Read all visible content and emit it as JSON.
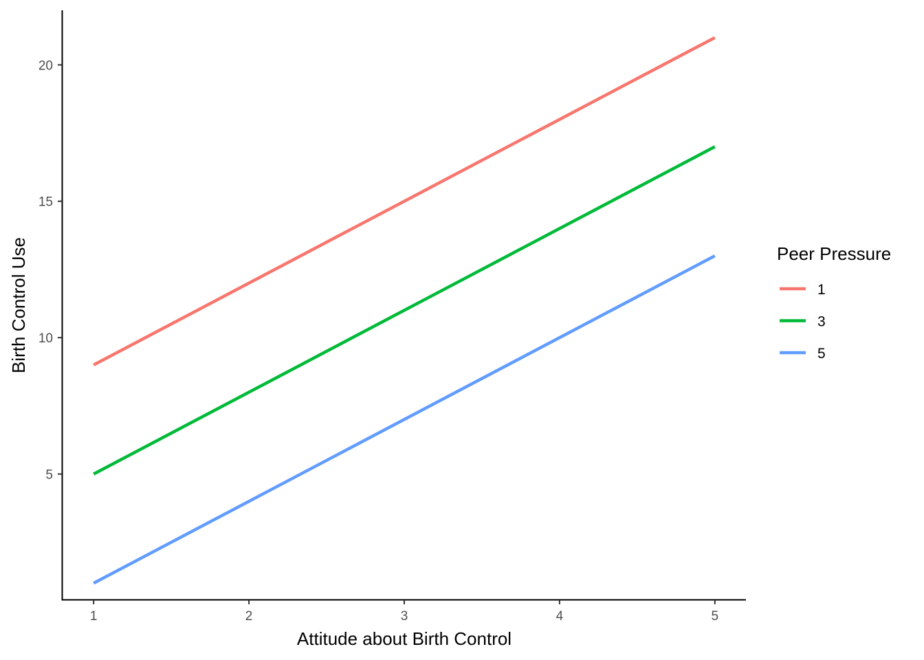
{
  "chart_data": {
    "type": "line",
    "title": "",
    "xlabel": "Attitude about Birth Control",
    "ylabel": "Birth Control Use",
    "x": [
      1,
      2,
      3,
      4,
      5
    ],
    "xlim": [
      0.8,
      5.2
    ],
    "ylim": [
      0.4,
      22.0
    ],
    "x_ticks": [
      1,
      2,
      3,
      4,
      5
    ],
    "y_ticks": [
      5,
      10,
      15,
      20
    ],
    "x_tick_labels": [
      "1",
      "2",
      "3",
      "4",
      "5"
    ],
    "y_tick_labels": [
      "5",
      "10",
      "15",
      "20"
    ],
    "grid": false,
    "legend": {
      "title": "Peer Pressure",
      "placement": "right"
    },
    "series": [
      {
        "name": "1",
        "color": "#F8766D",
        "values": [
          9,
          12,
          15,
          18,
          21
        ]
      },
      {
        "name": "3",
        "color": "#00BA38",
        "values": [
          5,
          8,
          11,
          14,
          17
        ]
      },
      {
        "name": "5",
        "color": "#619CFF",
        "values": [
          1,
          4,
          7,
          10,
          13
        ]
      }
    ]
  }
}
